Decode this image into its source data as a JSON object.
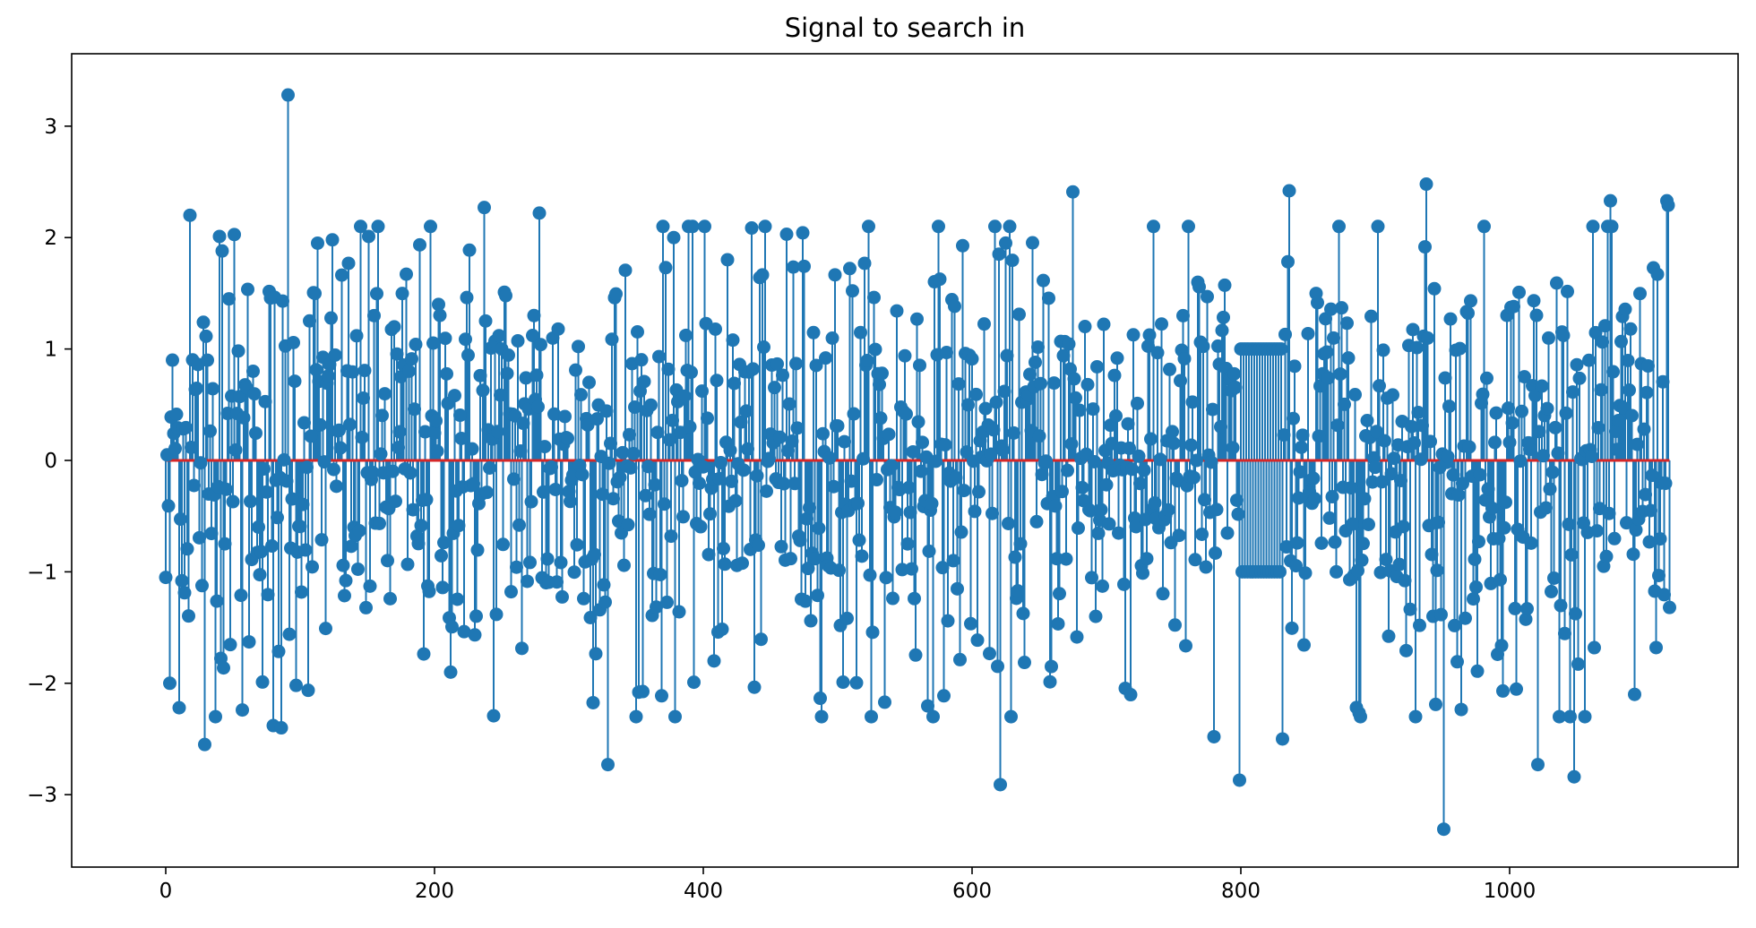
{
  "chart_data": {
    "type": "stem",
    "title": "Signal to search in",
    "xlabel": "",
    "ylabel": "",
    "xlim": [
      -70,
      1170
    ],
    "ylim": [
      -3.65,
      3.65
    ],
    "xticks": [
      0,
      200,
      400,
      600,
      800,
      1000
    ],
    "yticks": [
      -3,
      -2,
      -1,
      0,
      1,
      2,
      3
    ],
    "x_range": [
      0,
      1119
    ],
    "n_points": 1120,
    "colors": {
      "stem": "#1f77b4",
      "baseline": "#d62728"
    },
    "highlight_segment": {
      "x_start": 800,
      "x_end": 830,
      "values": [
        1.0,
        -1.0
      ]
    },
    "notable_points": [
      {
        "x": 0,
        "y": -1.05
      },
      {
        "x": 1,
        "y": 0.05
      },
      {
        "x": 3,
        "y": -2.0
      },
      {
        "x": 5,
        "y": 0.9
      },
      {
        "x": 10,
        "y": -2.22
      },
      {
        "x": 18,
        "y": 2.2
      },
      {
        "x": 29,
        "y": -2.55
      },
      {
        "x": 40,
        "y": 2.01
      },
      {
        "x": 42,
        "y": 1.88
      },
      {
        "x": 47,
        "y": 1.45
      },
      {
        "x": 57,
        "y": -2.24
      },
      {
        "x": 80,
        "y": -2.38
      },
      {
        "x": 86,
        "y": -2.4
      },
      {
        "x": 91,
        "y": 3.28
      },
      {
        "x": 113,
        "y": 1.95
      },
      {
        "x": 124,
        "y": 1.98
      },
      {
        "x": 151,
        "y": 2.01
      },
      {
        "x": 237,
        "y": 2.27
      },
      {
        "x": 278,
        "y": 2.22
      },
      {
        "x": 329,
        "y": -2.73
      },
      {
        "x": 352,
        "y": -2.08
      },
      {
        "x": 378,
        "y": 2.0
      },
      {
        "x": 462,
        "y": 2.03
      },
      {
        "x": 504,
        "y": -1.99
      },
      {
        "x": 535,
        "y": -2.17
      },
      {
        "x": 621,
        "y": -2.91
      },
      {
        "x": 675,
        "y": 2.41
      },
      {
        "x": 780,
        "y": -2.48
      },
      {
        "x": 799,
        "y": -2.87
      },
      {
        "x": 831,
        "y": -2.5
      },
      {
        "x": 836,
        "y": 2.42
      },
      {
        "x": 938,
        "y": 2.48
      },
      {
        "x": 945,
        "y": -2.19
      },
      {
        "x": 951,
        "y": -3.31
      },
      {
        "x": 1021,
        "y": -2.73
      },
      {
        "x": 1048,
        "y": -2.84
      },
      {
        "x": 1075,
        "y": 2.33
      },
      {
        "x": 1093,
        "y": -2.1
      },
      {
        "x": 1117,
        "y": 2.33
      },
      {
        "x": 1118,
        "y": 2.29
      },
      {
        "x": 1119,
        "y": -1.32
      }
    ]
  }
}
